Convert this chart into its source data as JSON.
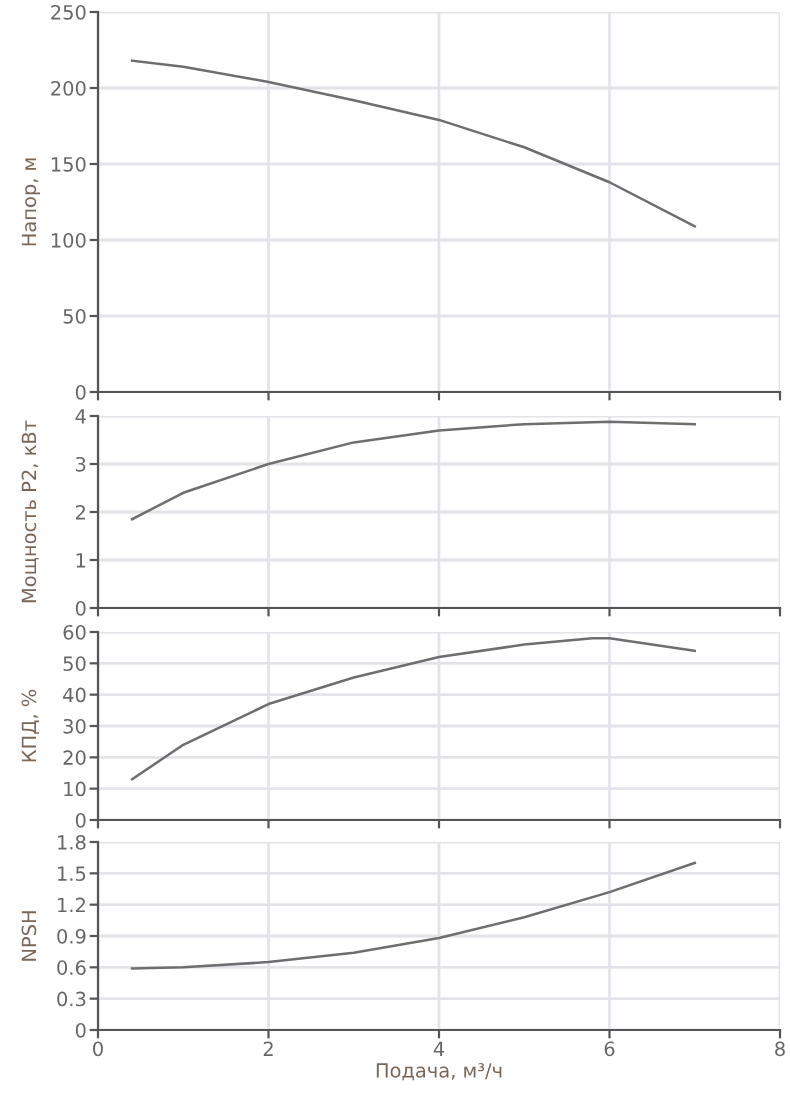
{
  "chart_data": [
    {
      "type": "line",
      "ylabel": "Напор, м",
      "x": [
        0.4,
        1,
        2,
        3,
        4,
        5,
        6,
        7
      ],
      "tick_labels": "y",
      "series": [
        {
          "color": "#6e6e6e",
          "values": [
            218,
            214,
            204,
            192,
            179,
            161,
            138,
            109
          ]
        }
      ],
      "xlim": [
        0,
        8
      ],
      "xticks": [
        0,
        2,
        4,
        6,
        8
      ],
      "ylim": [
        0,
        250
      ],
      "yticks": [
        0,
        50,
        100,
        150,
        200,
        250
      ],
      "grid": true
    },
    {
      "type": "line",
      "ylabel": "Мощность P2, кВт",
      "x": [
        0.4,
        1,
        2,
        3,
        4,
        5,
        6,
        7
      ],
      "tick_labels": "y",
      "series": [
        {
          "color": "#6e6e6e",
          "values": [
            1.85,
            2.4,
            3.0,
            3.45,
            3.7,
            3.83,
            3.88,
            3.83
          ]
        }
      ],
      "xlim": [
        0,
        8
      ],
      "xticks": [
        0,
        2,
        4,
        6,
        8
      ],
      "ylim": [
        0,
        4
      ],
      "yticks": [
        0,
        1,
        2,
        3,
        4
      ],
      "grid": true
    },
    {
      "type": "line",
      "ylabel": "КПД, %",
      "x": [
        0.4,
        1,
        2,
        3,
        4,
        5,
        5.8,
        6,
        7
      ],
      "tick_labels": "y",
      "series": [
        {
          "color": "#6e6e6e",
          "values": [
            13,
            24,
            37,
            45.5,
            52,
            56,
            58,
            58,
            54
          ]
        }
      ],
      "xlim": [
        0,
        8
      ],
      "xticks": [
        0,
        2,
        4,
        6,
        8
      ],
      "ylim": [
        0,
        60
      ],
      "yticks": [
        0,
        10,
        20,
        30,
        40,
        50,
        60
      ],
      "grid": true
    },
    {
      "type": "line",
      "xlabel": "Подача, м³/ч",
      "ylabel": "NPSH",
      "x": [
        0.4,
        1,
        2,
        3,
        4,
        5,
        6,
        7
      ],
      "series": [
        {
          "color": "#6e6e6e",
          "values": [
            0.59,
            0.6,
            0.65,
            0.74,
            0.88,
            1.08,
            1.32,
            1.6
          ]
        }
      ],
      "xlim": [
        0,
        8
      ],
      "xticks": [
        0,
        2,
        4,
        6,
        8
      ],
      "ylim": [
        0,
        1.8
      ],
      "yticks": [
        0,
        0.3,
        0.6,
        0.9,
        1.2,
        1.5,
        1.8
      ],
      "grid": true
    }
  ]
}
